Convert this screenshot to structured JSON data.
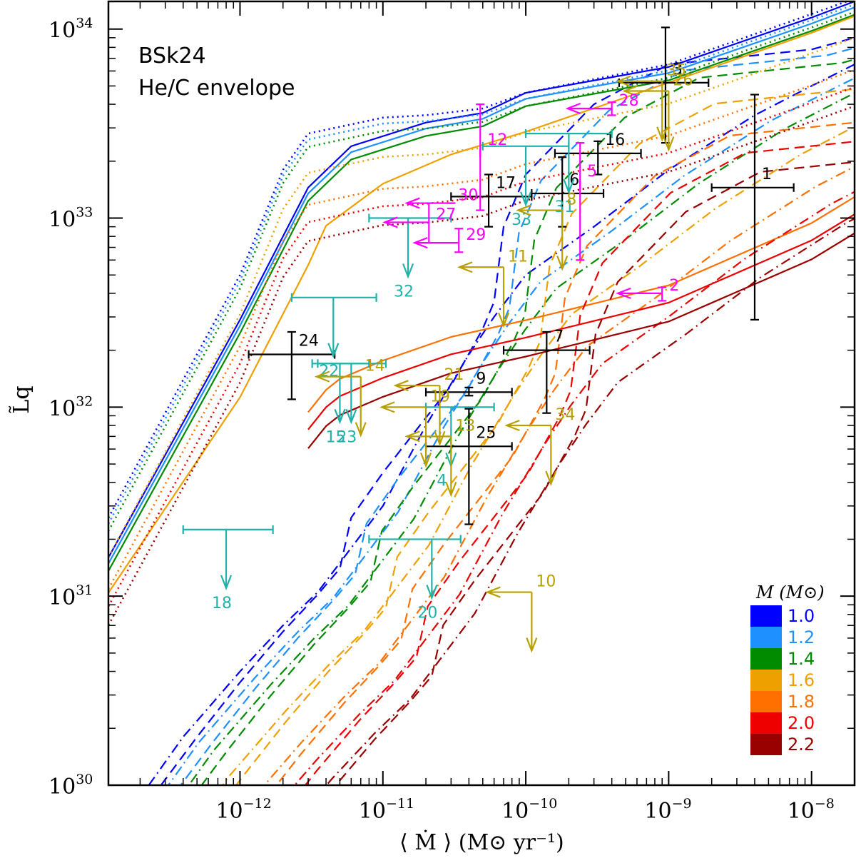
{
  "chart_data": {
    "type": "line",
    "title_lines": [
      "BSk24",
      "He/C envelope"
    ],
    "xlabel": "⟨ Ṁ ⟩  (M⊙ yr⁻¹)",
    "ylabel": "L̃q",
    "xscale": "log",
    "yscale": "log",
    "xlim": [
      1.2e-13,
      2e-08
    ],
    "ylim": [
      1e+30,
      1.4e+34
    ],
    "x_ticks": [
      {
        "base": "10",
        "exp": "−12",
        "v": 1e-12
      },
      {
        "base": "10",
        "exp": "−11",
        "v": 1e-11
      },
      {
        "base": "10",
        "exp": "−10",
        "v": 1e-10
      },
      {
        "base": "10",
        "exp": "−9",
        "v": 1e-09
      },
      {
        "base": "10",
        "exp": "−8",
        "v": 1e-08
      }
    ],
    "y_ticks": [
      {
        "base": "10",
        "exp": "30",
        "v": 1e+30
      },
      {
        "base": "10",
        "exp": "31",
        "v": 1e+31
      },
      {
        "base": "10",
        "exp": "32",
        "v": 1e+32
      },
      {
        "base": "10",
        "exp": "33",
        "v": 1e+33
      },
      {
        "base": "10",
        "exp": "34",
        "v": 1e+34
      }
    ],
    "legend": {
      "title": "M (M⊙)",
      "position": "bottom-right",
      "entries": [
        {
          "label": "1.0",
          "color": "#0000ff"
        },
        {
          "label": "1.2",
          "color": "#1e90ff"
        },
        {
          "label": "1.4",
          "color": "#008b00"
        },
        {
          "label": "1.6",
          "color": "#eea000"
        },
        {
          "label": "1.8",
          "color": "#ff7000"
        },
        {
          "label": "2.0",
          "color": "#ee0000"
        },
        {
          "label": "2.2",
          "color": "#990000"
        }
      ]
    },
    "mass_scale": {
      "M1.0": 1.0,
      "M1.2": 0.93,
      "M1.4": 0.85,
      "M1.6": 0.62,
      "M1.8": 0.42,
      "M2.0": 0.34,
      "M2.2": 0.27
    },
    "series_solid": {
      "name": "solid",
      "x": [
        1.2e-13,
        1e-12,
        3e-12,
        6e-12,
        2e-11,
        4e-11,
        5e-11,
        1e-10,
        1e-09,
        1e-08,
        2e-08
      ],
      "y": [
        1.6e+31,
        2.9e+32,
        1.45e+33,
        2.4e+33,
        3.2e+33,
        3.5e+33,
        3.6e+33,
        4.6e+33,
        6.3e+33,
        1.15e+34,
        1.4e+34
      ]
    },
    "series_solid_high": {
      "name": "solid-high-mass",
      "x": [
        1.2e-13,
        1e-12,
        3e-12,
        4e-12,
        1e-11,
        3e-11,
        1e-10,
        1e-09,
        1e-08,
        2e-08
      ],
      "y": [
        1.2e+31,
        1.3e+32,
        6.5e+32,
        1.05e+33,
        1.75e+33,
        2.5e+33,
        3.3e+33,
        6e+33,
        1.1e+34,
        1.35e+34
      ]
    },
    "series_dashed": {
      "name": "dashed",
      "x": [
        2.8e-13,
        5e-13,
        1e-12,
        2e-12,
        3.5e-12,
        5e-12,
        6e-12,
        1e-11,
        3e-11,
        5e-11,
        6e-11,
        7e-11,
        1e-10,
        3e-10,
        1e-09,
        1e-08,
        2e-08
      ],
      "y": [
        1e+30,
        1.8e+30,
        3.5e+30,
        6.5e+30,
        1.02e+31,
        1.4e+31,
        2.6e+31,
        4.5e+31,
        1.3e+32,
        2.6e+32,
        3.6e+32,
        9e+32,
        1.7e+33,
        4e+33,
        6.5e+33,
        7.8e+33,
        9e+33
      ]
    },
    "series_dotted": {
      "name": "dotted",
      "x": [
        1.2e-13,
        1e-12,
        2e-12,
        3e-12,
        1e-11,
        2e-11,
        5e-11,
        1e-10,
        1e-09,
        1e-08,
        2e-08
      ],
      "y": [
        2.6e+31,
        5e+32,
        1.8e+33,
        2.8e+33,
        3.4e+33,
        3.5e+33,
        3.8e+33,
        4.6e+33,
        6.5e+33,
        1.2e+34,
        1.45e+34
      ]
    },
    "series_solid_mid": {
      "name": "solid-mid",
      "x": [
        3e-12,
        4e-12,
        5e-12,
        1e-11,
        3e-11,
        1e-10,
        1e-09,
        1e-08,
        2e-08
      ],
      "y": [
        1.6e+32,
        2.1e+32,
        2.4e+32,
        3e+32,
        4e+32,
        4.9e+32,
        7.5e+32,
        1.6e+33,
        2.2e+33
      ]
    },
    "series_dashdot": {
      "name": "dashdot",
      "x": [
        2.3e-13,
        4e-13,
        1e-12,
        2e-12,
        3.5e-12,
        5e-12,
        1e-11,
        2e-11,
        4e-11,
        6e-11,
        1e-10,
        3e-10,
        1e-09,
        4e-09,
        1e-08,
        2e-08
      ],
      "y": [
        1e+30,
        1.8e+30,
        4e+30,
        7e+30,
        1.05e+31,
        1.5e+31,
        3e+31,
        8e+31,
        1.9e+32,
        3e+32,
        5e+32,
        9e+32,
        1.8e+33,
        3.5e+33,
        5e+33,
        6.5e+33
      ]
    },
    "error_bars": [
      {
        "label": "1",
        "x": 4e-09,
        "y": 1.45e+33,
        "xerr": [
          2e-09,
          7.5e-09
        ],
        "yerr": [
          2.9e+32,
          4.5e+33
        ],
        "color": "#000000"
      },
      {
        "label": "3",
        "x": 9.5e-10,
        "y": 5.2e+33,
        "xerr": [
          4.5e-10,
          1.9e-09
        ],
        "yerr": [
          2.5e+33,
          1.02e+34
        ],
        "color": "#000000"
      },
      {
        "label": "6",
        "x": 1.8e-10,
        "y": 1.35e+33,
        "xerr": [
          1.1e-10,
          3.5e-10
        ],
        "yerr": [
          9e+32,
          2.1e+33
        ],
        "color": "#000000"
      },
      {
        "label": "7",
        "x": 1.4e-10,
        "y": 2e+32,
        "xerr": [
          7e-11,
          2.8e-10
        ],
        "yerr": [
          9.3e+31,
          2.5e+32
        ],
        "color": "#000000"
      },
      {
        "label": "9",
        "x": 4e-11,
        "y": 1.2e+32,
        "xerr": [
          2e-11,
          8e-11
        ],
        "yerr": [
          1.15e+32,
          1.27e+32
        ],
        "color": "#000000"
      },
      {
        "label": "16",
        "x": 3.2e-10,
        "y": 2.2e+33,
        "xerr": [
          1.6e-10,
          6.4e-10
        ],
        "yerr": [
          1.7e+33,
          2.55e+33
        ],
        "color": "#000000"
      },
      {
        "label": "17",
        "x": 5.5e-11,
        "y": 1.3e+33,
        "xerr": [
          3e-11,
          1.1e-10
        ],
        "yerr": [
          9e+32,
          1.7e+33
        ],
        "color": "#000000"
      },
      {
        "label": "24",
        "x": 2.3e-12,
        "y": 1.9e+32,
        "xerr": [
          1.15e-12,
          4.6e-12
        ],
        "yerr": [
          1.1e+32,
          2.5e+32
        ],
        "color": "#000000"
      },
      {
        "label": "25",
        "x": 4e-11,
        "y": 6.2e+31,
        "xerr": [
          2e-11,
          8e-11
        ],
        "yerr": [
          2.4e+31,
          9.8e+31
        ],
        "color": "#000000"
      },
      {
        "label": "5",
        "x": 2.4e-10,
        "y": 1.5e+33,
        "xerr": [
          2.4e-10,
          2.4e-10
        ],
        "yerr": [
          6e+32,
          2.5e+33
        ],
        "color": "#ff00ff"
      },
      {
        "label": "12",
        "x": 4.8e-11,
        "y": 2.2e+33,
        "xerr": [
          4.8e-11,
          4.8e-11
        ],
        "yerr": [
          1.1e+33,
          4e+33
        ],
        "color": "#ff00ff"
      }
    ],
    "upper_limits_y": [
      {
        "label": "4",
        "x": 3e-11,
        "y": 1e+32,
        "xerr": [
          2e-11,
          6e-11
        ],
        "color": "#20b2aa"
      },
      {
        "label": "15",
        "x": 5e-12,
        "y": 1.7e+32,
        "xerr": [
          3.2e-12,
          8e-12
        ],
        "color": "#20b2aa"
      },
      {
        "label": "18",
        "x": 8e-13,
        "y": 2.25e+31,
        "xerr": [
          4e-13,
          1.7e-12
        ],
        "color": "#20b2aa"
      },
      {
        "label": "20",
        "x": 2.2e-11,
        "y": 2e+31,
        "xerr": [
          8e-12,
          3.5e-11
        ],
        "color": "#20b2aa"
      },
      {
        "label": "22",
        "x": 4.5e-12,
        "y": 3.8e+32,
        "xerr": [
          2.3e-12,
          9e-12
        ],
        "color": "#20b2aa"
      },
      {
        "label": "23",
        "x": 6e-12,
        "y": 1.7e+32,
        "xerr": [
          3.5e-12,
          1.05e-11
        ],
        "color": "#20b2aa"
      },
      {
        "label": "31",
        "x": 2e-10,
        "y": 2.8e+33,
        "xerr": [
          1e-10,
          4e-10
        ],
        "color": "#20b2aa"
      },
      {
        "label": "32",
        "x": 1.5e-11,
        "y": 1e+33,
        "xerr": [
          8e-12,
          3e-11
        ],
        "color": "#20b2aa"
      },
      {
        "label": "33",
        "x": 1e-10,
        "y": 2.4e+33,
        "xerr": [
          5e-11,
          2e-10
        ],
        "color": "#20b2aa"
      }
    ],
    "upper_limits_xy": [
      {
        "label": "8",
        "x": 1.8e-10,
        "y": 1.1e+33,
        "color": "#b8a000"
      },
      {
        "label": "10",
        "x": 1.1e-10,
        "y": 1.05e+31,
        "color": "#b8a000"
      },
      {
        "label": "11",
        "x": 7e-11,
        "y": 5.5e+32,
        "color": "#b8a000"
      },
      {
        "label": "13",
        "x": 3e-11,
        "y": 7e+31,
        "color": "#b8a000"
      },
      {
        "label": "14",
        "x": 7e-12,
        "y": 1.45e+32,
        "color": "#b8a000"
      },
      {
        "label": "19",
        "x": 2e-11,
        "y": 1e+32,
        "color": "#b8a000"
      },
      {
        "label": "21",
        "x": 2.5e-11,
        "y": 1.3e+32,
        "color": "#b8a000"
      },
      {
        "label": "26",
        "x": 1e-09,
        "y": 4.7e+33,
        "color": "#b8a000"
      },
      {
        "label": "34",
        "x": 1.5e-10,
        "y": 8e+31,
        "color": "#b8a000"
      },
      {
        "label": "35",
        "x": 9e-10,
        "y": 5.3e+33,
        "color": "#b8a000"
      }
    ],
    "upper_limits_x": [
      {
        "label": "2",
        "x": 9e-10,
        "y": 4e+32,
        "yerr": [
          3.65e+32,
          4.3e+32
        ],
        "color": "#ff00ff"
      },
      {
        "label": "27",
        "x": 2.1e-11,
        "y": 9.5e+32,
        "yerr": [
          7.4e+32,
          1.2e+33
        ],
        "color": "#ff00ff"
      },
      {
        "label": "28",
        "x": 4e-10,
        "y": 3.8e+33,
        "yerr": [
          3.5e+33,
          4.1e+33
        ],
        "color": "#ff00ff"
      },
      {
        "label": "29",
        "x": 3.4e-11,
        "y": 7.4e+32,
        "yerr": [
          6.6e+32,
          8.8e+32
        ],
        "color": "#ff00ff"
      },
      {
        "label": "30",
        "x": 3e-11,
        "y": 1.2e+33,
        "yerr": [
          1.2e+33,
          1.2e+33
        ],
        "color": "#ff00ff"
      }
    ]
  }
}
